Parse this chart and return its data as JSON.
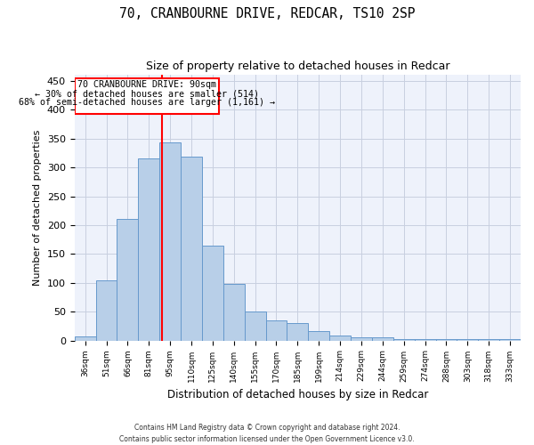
{
  "title": "70, CRANBOURNE DRIVE, REDCAR, TS10 2SP",
  "subtitle": "Size of property relative to detached houses in Redcar",
  "xlabel": "Distribution of detached houses by size in Redcar",
  "ylabel": "Number of detached properties",
  "bar_values": [
    7,
    105,
    210,
    315,
    343,
    318,
    165,
    98,
    50,
    35,
    30,
    16,
    9,
    5,
    5,
    3,
    3,
    2,
    2,
    2,
    2
  ],
  "x_tick_labels": [
    "36sqm",
    "51sqm",
    "66sqm",
    "81sqm",
    "95sqm",
    "110sqm",
    "125sqm",
    "140sqm",
    "155sqm",
    "170sqm",
    "185sqm",
    "199sqm",
    "214sqm",
    "229sqm",
    "244sqm",
    "259sqm",
    "274sqm",
    "288sqm",
    "303sqm",
    "318sqm",
    "333sqm"
  ],
  "bar_color": "#b8cfe8",
  "bar_edge_color": "#6699cc",
  "ylim": [
    0,
    460
  ],
  "yticks": [
    0,
    50,
    100,
    150,
    200,
    250,
    300,
    350,
    400,
    450
  ],
  "property_label": "70 CRANBOURNE DRIVE: 90sqm",
  "annotation_line1": "← 30% of detached houses are smaller (514)",
  "annotation_line2": "68% of semi-detached houses are larger (1,161) →",
  "red_line_x": 3.6,
  "footer_line1": "Contains HM Land Registry data © Crown copyright and database right 2024.",
  "footer_line2": "Contains public sector information licensed under the Open Government Licence v3.0.",
  "background_color": "#eef2fb",
  "grid_color": "#c8cfe0"
}
